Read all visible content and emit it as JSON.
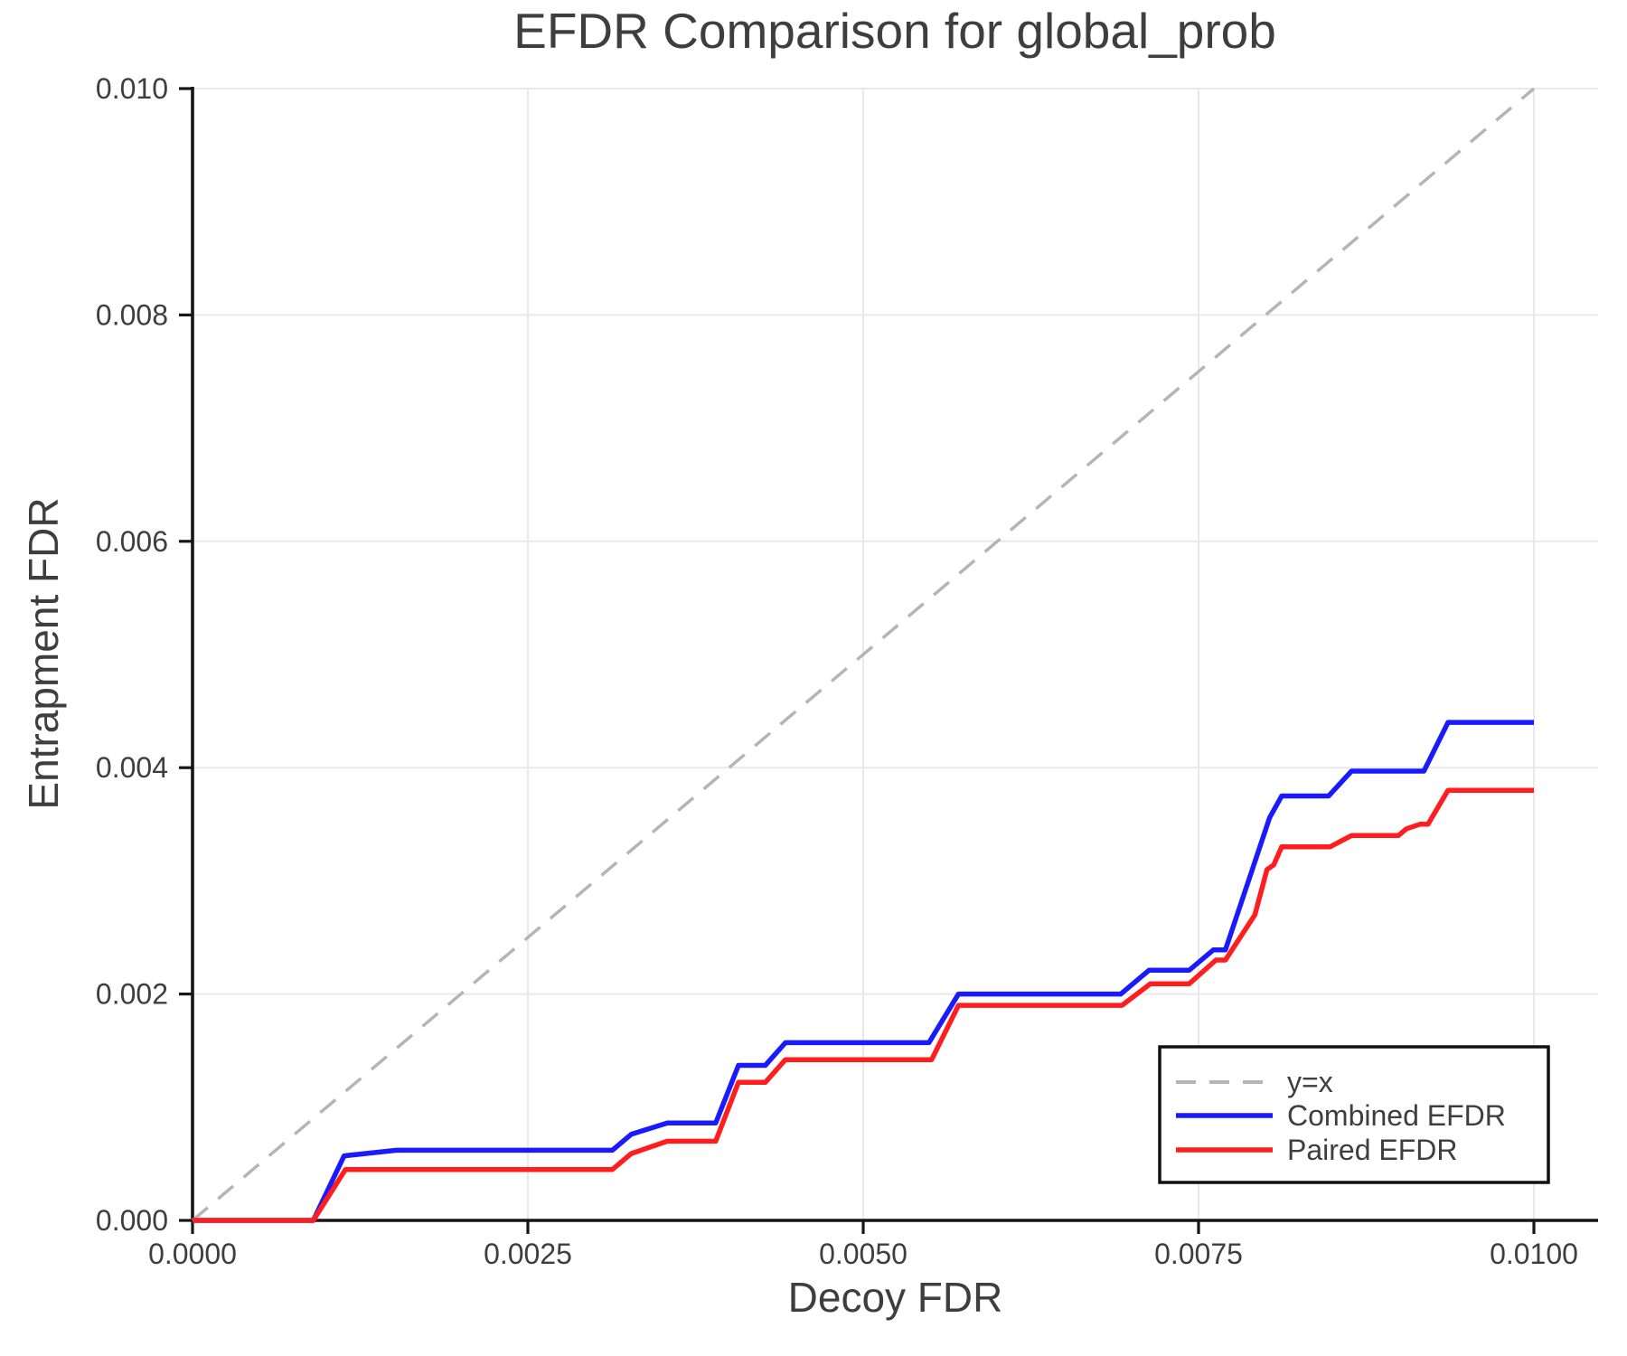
{
  "title": "EFDR Comparison for global_prob",
  "chart_data": {
    "type": "line",
    "title": "EFDR Comparison for global_prob",
    "xlabel": "Decoy FDR",
    "ylabel": "Entrapment FDR",
    "xlim": [
      0,
      0.010478
    ],
    "ylim": [
      0,
      0.01
    ],
    "grid": true,
    "grid_color": "#e9e9ec",
    "spine_color": "#161616",
    "text_color": "#3e3e3e",
    "legend_position": "lower right",
    "x_ticks": [
      0,
      0.0025,
      0.005,
      0.0075,
      0.01
    ],
    "x_tick_labels": [
      "0.0000",
      "0.0025",
      "0.0050",
      "0.0075",
      "0.0100"
    ],
    "y_ticks": [
      0,
      0.002,
      0.004,
      0.006,
      0.008,
      0.01
    ],
    "y_tick_labels": [
      "0.000",
      "0.002",
      "0.004",
      "0.006",
      "0.008",
      "0.010"
    ],
    "series": [
      {
        "name": "y=x",
        "color": "#b5b5b5",
        "style": "dashed",
        "points": [
          [
            0,
            0
          ],
          [
            0.01,
            0.01
          ]
        ]
      },
      {
        "name": "Combined EFDR",
        "color": "#1a1aff",
        "style": "solid",
        "points": [
          [
            0,
            0
          ],
          [
            0.0009,
            0
          ],
          [
            0.00113,
            0.00057
          ],
          [
            0.00152,
            0.00062
          ],
          [
            0.00313,
            0.00062
          ],
          [
            0.00327,
            0.00076
          ],
          [
            0.00354,
            0.00086
          ],
          [
            0.0039,
            0.00086
          ],
          [
            0.00407,
            0.00137
          ],
          [
            0.00427,
            0.00137
          ],
          [
            0.00442,
            0.00157
          ],
          [
            0.00549,
            0.00157
          ],
          [
            0.00571,
            0.002
          ],
          [
            0.00692,
            0.002
          ],
          [
            0.00713,
            0.00221
          ],
          [
            0.00743,
            0.00221
          ],
          [
            0.00761,
            0.00239
          ],
          [
            0.0077,
            0.00239
          ],
          [
            0.00803,
            0.00356
          ],
          [
            0.00812,
            0.00375
          ],
          [
            0.00847,
            0.00375
          ],
          [
            0.00864,
            0.00397
          ],
          [
            0.00918,
            0.00397
          ],
          [
            0.00936,
            0.0044
          ],
          [
            0.01,
            0.0044
          ]
        ]
      },
      {
        "name": "Paired EFDR",
        "color": "#ff1d1d",
        "style": "solid",
        "points": [
          [
            0,
            0
          ],
          [
            0.0009,
            0
          ],
          [
            0.00114,
            0.00045
          ],
          [
            0.00313,
            0.00045
          ],
          [
            0.00327,
            0.00059
          ],
          [
            0.00354,
            0.0007
          ],
          [
            0.0039,
            0.0007
          ],
          [
            0.00407,
            0.00122
          ],
          [
            0.00427,
            0.00122
          ],
          [
            0.00442,
            0.00142
          ],
          [
            0.00551,
            0.00142
          ],
          [
            0.00571,
            0.0019
          ],
          [
            0.00693,
            0.0019
          ],
          [
            0.00714,
            0.00209
          ],
          [
            0.00743,
            0.00209
          ],
          [
            0.00763,
            0.0023
          ],
          [
            0.0077,
            0.0023
          ],
          [
            0.00792,
            0.0027
          ],
          [
            0.00801,
            0.0031
          ],
          [
            0.00806,
            0.00314
          ],
          [
            0.00812,
            0.0033
          ],
          [
            0.00848,
            0.0033
          ],
          [
            0.00864,
            0.0034
          ],
          [
            0.00899,
            0.0034
          ],
          [
            0.00905,
            0.00346
          ],
          [
            0.00915,
            0.0035
          ],
          [
            0.00921,
            0.0035
          ],
          [
            0.00936,
            0.0038
          ],
          [
            0.01,
            0.0038
          ]
        ]
      }
    ]
  }
}
